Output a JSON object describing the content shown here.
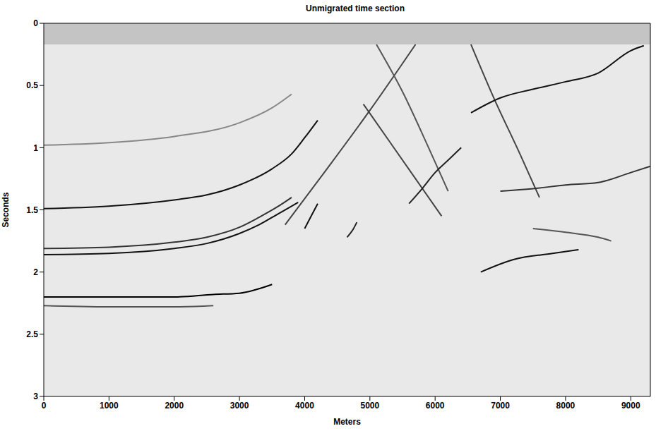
{
  "chart_data": {
    "type": "line",
    "title": "Unmigrated time section",
    "x_label": "Meters",
    "y_label": "Seconds",
    "xlim": [
      0,
      9300
    ],
    "ylim": [
      0,
      3
    ],
    "xticks": [
      0,
      1000,
      2000,
      3000,
      4000,
      5000,
      6000,
      7000,
      8000,
      9000
    ],
    "yticks": [
      0,
      0.5,
      1,
      1.5,
      2,
      2.5,
      3
    ],
    "grid": false,
    "muted_until": 0.17,
    "series": [
      {
        "color": "#888888",
        "x": [
          0,
          1000,
          2000,
          3000,
          3500,
          3800
        ],
        "values": [
          0.98,
          0.96,
          0.91,
          0.8,
          0.68,
          0.57
        ]
      },
      {
        "color": "#111111",
        "x": [
          0,
          1000,
          2000,
          2500,
          3000,
          3500,
          3800,
          4000,
          4200
        ],
        "values": [
          1.49,
          1.47,
          1.42,
          1.38,
          1.3,
          1.17,
          1.05,
          0.92,
          0.78
        ]
      },
      {
        "color": "#333333",
        "x": [
          0,
          1000,
          2000,
          2500,
          3000,
          3300,
          3600,
          3800
        ],
        "values": [
          1.81,
          1.8,
          1.76,
          1.72,
          1.64,
          1.56,
          1.47,
          1.4
        ]
      },
      {
        "color": "#111111",
        "x": [
          0,
          1000,
          2000,
          2500,
          3000,
          3300,
          3600,
          3900
        ],
        "values": [
          1.86,
          1.85,
          1.81,
          1.77,
          1.69,
          1.62,
          1.53,
          1.44
        ]
      },
      {
        "color": "#000000",
        "x": [
          0,
          1000,
          2000,
          2600,
          3000,
          3500
        ],
        "values": [
          2.2,
          2.2,
          2.2,
          2.18,
          2.17,
          2.1
        ]
      },
      {
        "color": "#555555",
        "x": [
          0,
          1000,
          2000,
          2600
        ],
        "values": [
          2.27,
          2.28,
          2.28,
          2.27
        ]
      },
      {
        "color": "#444444",
        "x": [
          3700,
          4300,
          5000,
          5700
        ],
        "values": [
          1.62,
          1.2,
          0.7,
          0.17
        ]
      },
      {
        "color": "#444444",
        "x": [
          4900,
          5300,
          5700,
          6100
        ],
        "values": [
          0.65,
          0.95,
          1.25,
          1.55
        ]
      },
      {
        "color": "#555555",
        "x": [
          5100,
          5500,
          5900,
          6200
        ],
        "values": [
          0.17,
          0.55,
          1.0,
          1.35
        ]
      },
      {
        "color": "#222222",
        "x": [
          5600,
          5800,
          6000,
          6200,
          6400
        ],
        "values": [
          1.45,
          1.33,
          1.2,
          1.1,
          1.0
        ]
      },
      {
        "color": "#444444",
        "x": [
          6550,
          6900,
          7300,
          7600
        ],
        "values": [
          0.17,
          0.6,
          1.05,
          1.4
        ]
      },
      {
        "color": "#111111",
        "x": [
          6550,
          7000,
          7500,
          8000,
          8500,
          9000,
          9200
        ],
        "values": [
          0.72,
          0.6,
          0.53,
          0.47,
          0.4,
          0.22,
          0.18
        ]
      },
      {
        "color": "#333333",
        "x": [
          7000,
          7500,
          8000,
          8500,
          9000,
          9300
        ],
        "values": [
          1.35,
          1.33,
          1.3,
          1.28,
          1.2,
          1.15
        ]
      },
      {
        "color": "#555555",
        "x": [
          7500,
          8000,
          8500,
          8700
        ],
        "values": [
          1.65,
          1.68,
          1.72,
          1.75
        ]
      },
      {
        "color": "#111111",
        "x": [
          6700,
          7200,
          7800,
          8200
        ],
        "values": [
          2.0,
          1.9,
          1.85,
          1.82
        ]
      },
      {
        "color": "#111111",
        "x": [
          4000,
          4100,
          4200
        ],
        "values": [
          1.65,
          1.55,
          1.45
        ]
      },
      {
        "color": "#222222",
        "x": [
          4650,
          4750,
          4800
        ],
        "values": [
          1.72,
          1.65,
          1.6
        ]
      }
    ]
  }
}
